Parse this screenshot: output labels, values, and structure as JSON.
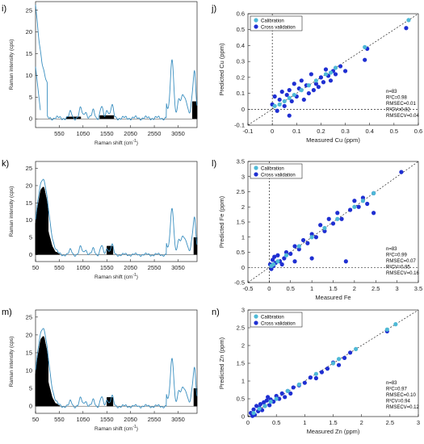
{
  "figure": {
    "left_panels": [
      {
        "label": "i)",
        "xlabel_main": "Raman shift (cm",
        "xlabel_sup": "-1",
        "xlabel_end": ")",
        "ylabel": "Raman intensity (cps)",
        "xticks": [
          "550",
          "1050",
          "1550",
          "2050",
          "2550",
          "3050"
        ],
        "yticks": [
          "0",
          "5",
          "10",
          "15",
          "20",
          "25"
        ],
        "xlim": [
          50,
          3450
        ],
        "ylim": [
          -2,
          27
        ]
      },
      {
        "label": "k)",
        "xlabel_main": "Raman shift (cm",
        "xlabel_sup": "-1",
        "xlabel_end": ")",
        "ylabel": "Raman intensity (cps)",
        "xticks": [
          "50",
          "550",
          "1050",
          "1550",
          "2050",
          "2550",
          "3050"
        ],
        "yticks": [
          "0",
          "5",
          "10",
          "15",
          "20",
          "25"
        ],
        "xlim": [
          50,
          3450
        ],
        "ylim": [
          -2,
          27
        ]
      },
      {
        "label": "m)",
        "xlabel_main": "Raman shift (cm",
        "xlabel_sup": "-1",
        "xlabel_end": ")",
        "ylabel": "Raman intensity (cps)",
        "xticks": [
          "50",
          "550",
          "1050",
          "1550",
          "2050",
          "2550",
          "3050"
        ],
        "yticks": [
          "0",
          "5",
          "10",
          "15",
          "20",
          "25"
        ],
        "xlim": [
          50,
          3450
        ],
        "ylim": [
          -2,
          27
        ]
      }
    ],
    "colors": {
      "spectrum": "#3a8fc0",
      "calibration": "#4fb9d6",
      "cross_validation": "#1f2fd2",
      "bars": "#000000"
    }
  },
  "chart_data": [
    {
      "type": "scatter",
      "panel": "j)",
      "xlabel": "Measured Cu (ppm)",
      "ylabel": "Predicted Cu (ppm)",
      "xlim": [
        -0.1,
        0.6
      ],
      "ylim": [
        -0.1,
        0.6
      ],
      "xticks": [
        "-0.1",
        "0",
        "0.1",
        "0.2",
        "0.3",
        "0.4",
        "0.5",
        "0.6"
      ],
      "yticks": [
        "-0.1",
        "0",
        "0.1",
        "0.2",
        "0.3",
        "0.4",
        "0.5",
        "0.6"
      ],
      "legend": {
        "position": "top-left",
        "items": [
          "Calibration",
          "Cross validation"
        ]
      },
      "stats": [
        "n=83",
        "R²C=0.98",
        "RMSEC=0.01",
        "R²CV=0.82",
        "RMSECV=0.04"
      ],
      "series": [
        {
          "name": "Calibration",
          "points": [
            [
              0.01,
              0.02
            ],
            [
              0.03,
              0.03
            ],
            [
              0.05,
              0.05
            ],
            [
              0.07,
              0.07
            ],
            [
              0.09,
              0.09
            ],
            [
              0.12,
              0.12
            ],
            [
              0.15,
              0.15
            ],
            [
              0.18,
              0.18
            ],
            [
              0.22,
              0.22
            ],
            [
              0.24,
              0.23
            ],
            [
              0.26,
              0.26
            ],
            [
              0.38,
              0.39
            ],
            [
              0.56,
              0.56
            ]
          ]
        },
        {
          "name": "Cross validation",
          "points": [
            [
              0.0,
              0.03
            ],
            [
              0.01,
              0.08
            ],
            [
              0.02,
              -0.01
            ],
            [
              0.03,
              0.06
            ],
            [
              0.04,
              0.11
            ],
            [
              0.05,
              0.02
            ],
            [
              0.06,
              0.09
            ],
            [
              0.07,
              0.12
            ],
            [
              0.07,
              -0.04
            ],
            [
              0.08,
              0.05
            ],
            [
              0.09,
              0.16
            ],
            [
              0.1,
              0.08
            ],
            [
              0.11,
              0.13
            ],
            [
              0.12,
              0.18
            ],
            [
              0.13,
              0.06
            ],
            [
              0.14,
              0.15
            ],
            [
              0.15,
              0.1
            ],
            [
              0.16,
              0.22
            ],
            [
              0.17,
              0.12
            ],
            [
              0.18,
              0.16
            ],
            [
              0.19,
              0.14
            ],
            [
              0.2,
              0.2
            ],
            [
              0.21,
              0.17
            ],
            [
              0.22,
              0.25
            ],
            [
              0.23,
              0.21
            ],
            [
              0.24,
              0.18
            ],
            [
              0.25,
              0.24
            ],
            [
              0.26,
              0.22
            ],
            [
              0.28,
              0.27
            ],
            [
              0.3,
              0.24
            ],
            [
              0.38,
              0.31
            ],
            [
              0.39,
              0.38
            ],
            [
              0.55,
              0.51
            ]
          ]
        }
      ]
    },
    {
      "type": "scatter",
      "panel": "l)",
      "xlabel": "Measured Fe",
      "ylabel": "Predicted Fe (ppm)",
      "xlim": [
        -0.5,
        3.5
      ],
      "ylim": [
        -0.5,
        3.5
      ],
      "xticks": [
        "-0.5",
        "0",
        "0.5",
        "1",
        "1.5",
        "2",
        "2.5",
        "3",
        "3.5"
      ],
      "yticks": [
        "-0.5",
        "0",
        "0.5",
        "1",
        "1.5",
        "2",
        "2.5",
        "3",
        "3.5"
      ],
      "legend": {
        "position": "top-left",
        "items": [
          "Calibration",
          "Cross validation"
        ]
      },
      "stats": [
        "n=83",
        "R²C=0.99",
        "RMSEC=0.07",
        "R²CV=0.95",
        "RMSECV=0.16"
      ],
      "series": [
        {
          "name": "Calibration",
          "points": [
            [
              0.05,
              0.05
            ],
            [
              0.1,
              0.1
            ],
            [
              0.2,
              0.2
            ],
            [
              0.4,
              0.4
            ],
            [
              0.7,
              0.7
            ],
            [
              1.0,
              1.0
            ],
            [
              1.3,
              1.3
            ],
            [
              1.6,
              1.6
            ],
            [
              2.0,
              2.0
            ],
            [
              2.2,
              2.2
            ],
            [
              2.45,
              2.45
            ]
          ]
        },
        {
          "name": "Cross validation",
          "points": [
            [
              0.02,
              0.1
            ],
            [
              0.05,
              -0.05
            ],
            [
              0.08,
              0.25
            ],
            [
              0.1,
              0.05
            ],
            [
              0.12,
              0.35
            ],
            [
              0.15,
              0.15
            ],
            [
              0.2,
              0.4
            ],
            [
              0.25,
              0.2
            ],
            [
              0.3,
              0.1
            ],
            [
              0.35,
              0.3
            ],
            [
              0.4,
              0.5
            ],
            [
              0.5,
              0.45
            ],
            [
              0.6,
              0.2
            ],
            [
              0.6,
              0.7
            ],
            [
              0.7,
              0.6
            ],
            [
              0.8,
              0.9
            ],
            [
              0.9,
              0.8
            ],
            [
              1.0,
              1.1
            ],
            [
              1.0,
              0.3
            ],
            [
              1.1,
              1.0
            ],
            [
              1.2,
              1.4
            ],
            [
              1.3,
              1.2
            ],
            [
              1.4,
              1.6
            ],
            [
              1.5,
              1.45
            ],
            [
              1.6,
              1.8
            ],
            [
              1.7,
              1.6
            ],
            [
              1.8,
              0.2
            ],
            [
              1.9,
              1.9
            ],
            [
              2.0,
              2.2
            ],
            [
              2.1,
              2.0
            ],
            [
              2.2,
              2.3
            ],
            [
              2.3,
              2.1
            ],
            [
              2.45,
              2.45
            ],
            [
              2.45,
              1.8
            ],
            [
              3.1,
              3.15
            ]
          ]
        }
      ]
    },
    {
      "type": "scatter",
      "panel": "n)",
      "xlabel": "Measured Zn (ppm)",
      "ylabel": "Predicted Zn (ppm)",
      "xlim": [
        0,
        3
      ],
      "ylim": [
        0,
        3
      ],
      "xticks": [
        "0",
        "0.5",
        "1",
        "1.5",
        "2",
        "2.5",
        "3"
      ],
      "yticks": [
        "0",
        "0.5",
        "1",
        "1.5",
        "2",
        "2.5",
        "3"
      ],
      "legend": {
        "position": "top-left",
        "items": [
          "Calibration",
          "Cross validation"
        ]
      },
      "stats": [
        "n=83",
        "R²C=0.97",
        "RMSEC=0.10",
        "R²CV=0.94",
        "RMSECV=0.12"
      ],
      "series": [
        {
          "name": "Calibration",
          "points": [
            [
              0.1,
              0.1
            ],
            [
              0.2,
              0.22
            ],
            [
              0.3,
              0.3
            ],
            [
              0.4,
              0.42
            ],
            [
              0.5,
              0.5
            ],
            [
              0.7,
              0.72
            ],
            [
              0.9,
              0.9
            ],
            [
              1.2,
              1.2
            ],
            [
              1.5,
              1.5
            ],
            [
              1.6,
              1.62
            ],
            [
              1.9,
              1.9
            ],
            [
              2.45,
              2.45
            ],
            [
              2.6,
              2.6
            ]
          ]
        },
        {
          "name": "Cross validation",
          "points": [
            [
              0.05,
              0.1
            ],
            [
              0.08,
              0.02
            ],
            [
              0.1,
              0.2
            ],
            [
              0.12,
              0.05
            ],
            [
              0.15,
              0.3
            ],
            [
              0.18,
              0.15
            ],
            [
              0.2,
              0.25
            ],
            [
              0.22,
              0.35
            ],
            [
              0.25,
              0.18
            ],
            [
              0.28,
              0.4
            ],
            [
              0.3,
              0.3
            ],
            [
              0.33,
              0.45
            ],
            [
              0.35,
              0.55
            ],
            [
              0.38,
              0.32
            ],
            [
              0.4,
              0.48
            ],
            [
              0.45,
              0.42
            ],
            [
              0.5,
              0.58
            ],
            [
              0.55,
              0.5
            ],
            [
              0.6,
              0.65
            ],
            [
              0.65,
              0.55
            ],
            [
              0.7,
              0.72
            ],
            [
              0.75,
              0.65
            ],
            [
              0.8,
              0.82
            ],
            [
              0.9,
              0.88
            ],
            [
              1.0,
              0.95
            ],
            [
              1.1,
              1.1
            ],
            [
              1.2,
              1.08
            ],
            [
              1.3,
              1.25
            ],
            [
              1.4,
              1.35
            ],
            [
              1.5,
              1.52
            ],
            [
              1.6,
              1.45
            ],
            [
              1.7,
              1.65
            ],
            [
              1.8,
              1.8
            ],
            [
              2.45,
              2.4
            ]
          ]
        }
      ]
    }
  ]
}
